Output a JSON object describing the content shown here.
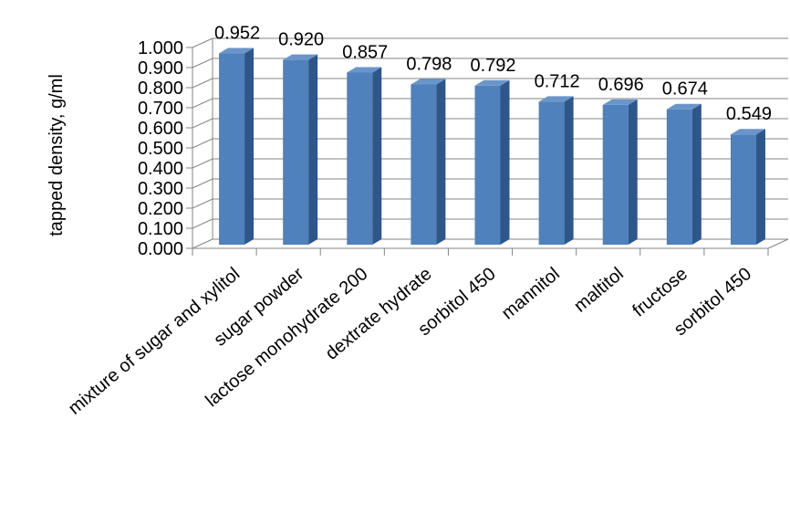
{
  "chart_data": {
    "type": "bar",
    "title": "",
    "xlabel": "",
    "ylabel": "tapped density, g/ml",
    "ylim": [
      0,
      1.0
    ],
    "ytick_step": 0.1,
    "ytick_labels": [
      "0.000",
      "0.100",
      "0.200",
      "0.300",
      "0.400",
      "0.500",
      "0.600",
      "0.700",
      "0.800",
      "0.900",
      "1.000"
    ],
    "grid": true,
    "legend": "none",
    "categories": [
      "mixture of sugar and xylitol",
      "sugar powder",
      "lactose monohydrate 200",
      "dextrate hydrate",
      "sorbitol 450",
      "mannitol",
      "maltitol",
      "fructose",
      "sorbitol 450"
    ],
    "values": [
      0.952,
      0.92,
      0.857,
      0.798,
      0.792,
      0.712,
      0.696,
      0.674,
      0.549
    ],
    "value_labels": [
      "0.952",
      "0.920",
      "0.857",
      "0.798",
      "0.792",
      "0.712",
      "0.696",
      "0.674",
      "0.549"
    ],
    "colors": {
      "bar_front": "#4f81bd",
      "bar_side": "#2e5689",
      "bar_top": "#6b95c9",
      "grid": "#868686",
      "axis": "#868686"
    }
  }
}
